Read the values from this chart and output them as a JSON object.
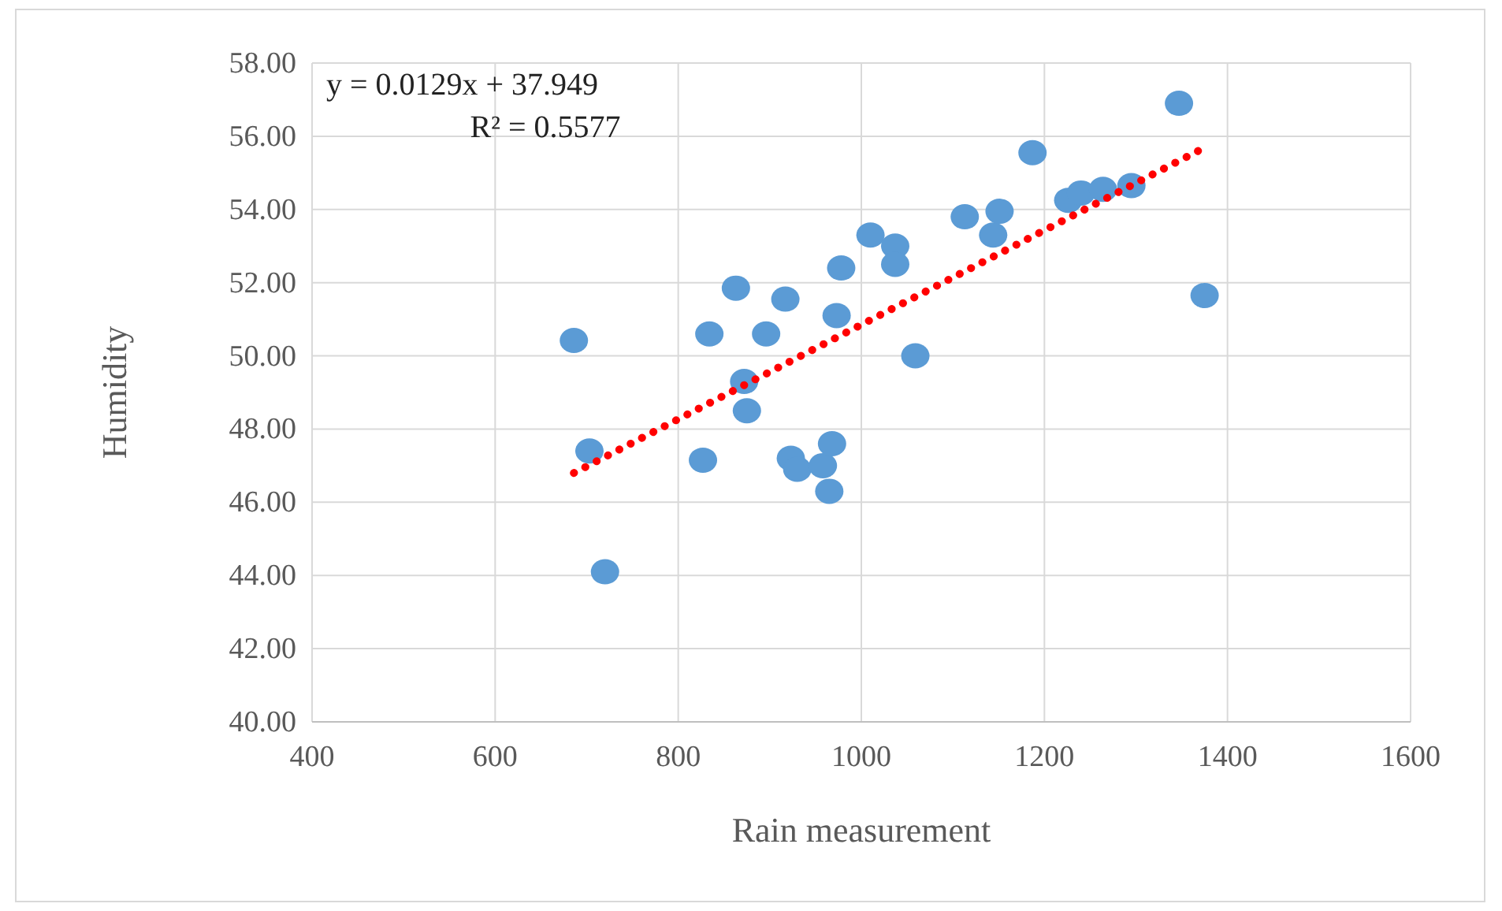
{
  "chart_data": {
    "type": "scatter",
    "xlabel": "Rain measurement",
    "ylabel": "Humidity",
    "xlim": [
      400,
      1600
    ],
    "xticks": [
      400,
      600,
      800,
      1000,
      1200,
      1400,
      1600
    ],
    "ylim": [
      40,
      58
    ],
    "yticks": [
      {
        "value": 40,
        "label": "40.00"
      },
      {
        "value": 42,
        "label": "42.00"
      },
      {
        "value": 44,
        "label": "44.00"
      },
      {
        "value": 46,
        "label": "46.00"
      },
      {
        "value": 48,
        "label": "48.00"
      },
      {
        "value": 50,
        "label": "50.00"
      },
      {
        "value": 52,
        "label": "52.00"
      },
      {
        "value": 54,
        "label": "54.00"
      },
      {
        "value": 56,
        "label": "56.00"
      },
      {
        "value": 58,
        "label": "58.00"
      }
    ],
    "grid": true,
    "marker": "circle",
    "annotations": [
      "y = 0.0129x + 37.949",
      "R² = 0.5577"
    ],
    "series": [
      {
        "color": "#5b9bd5",
        "x": [
          686,
          703,
          720,
          827,
          834,
          863,
          872,
          875,
          896,
          917,
          923,
          930,
          958,
          968,
          965,
          973,
          978,
          1010,
          1037,
          1037,
          1059,
          1113,
          1144,
          1151,
          1187,
          1226,
          1240,
          1264,
          1295,
          1347,
          1375
        ],
        "values": [
          50.42,
          47.4,
          44.1,
          47.15,
          50.6,
          51.85,
          49.3,
          48.5,
          50.6,
          51.55,
          47.2,
          46.9,
          47.0,
          47.6,
          46.3,
          51.1,
          52.4,
          53.3,
          53.0,
          52.5,
          50.0,
          53.8,
          53.3,
          53.95,
          55.55,
          54.25,
          54.45,
          54.55,
          54.65,
          56.9,
          51.65
        ]
      },
      {
        "type": "line",
        "color": "#ff0000",
        "line_style": "dotted",
        "marker": "none",
        "x": [
          686,
          1375
        ],
        "values": [
          46.8,
          55.69
        ]
      }
    ]
  }
}
